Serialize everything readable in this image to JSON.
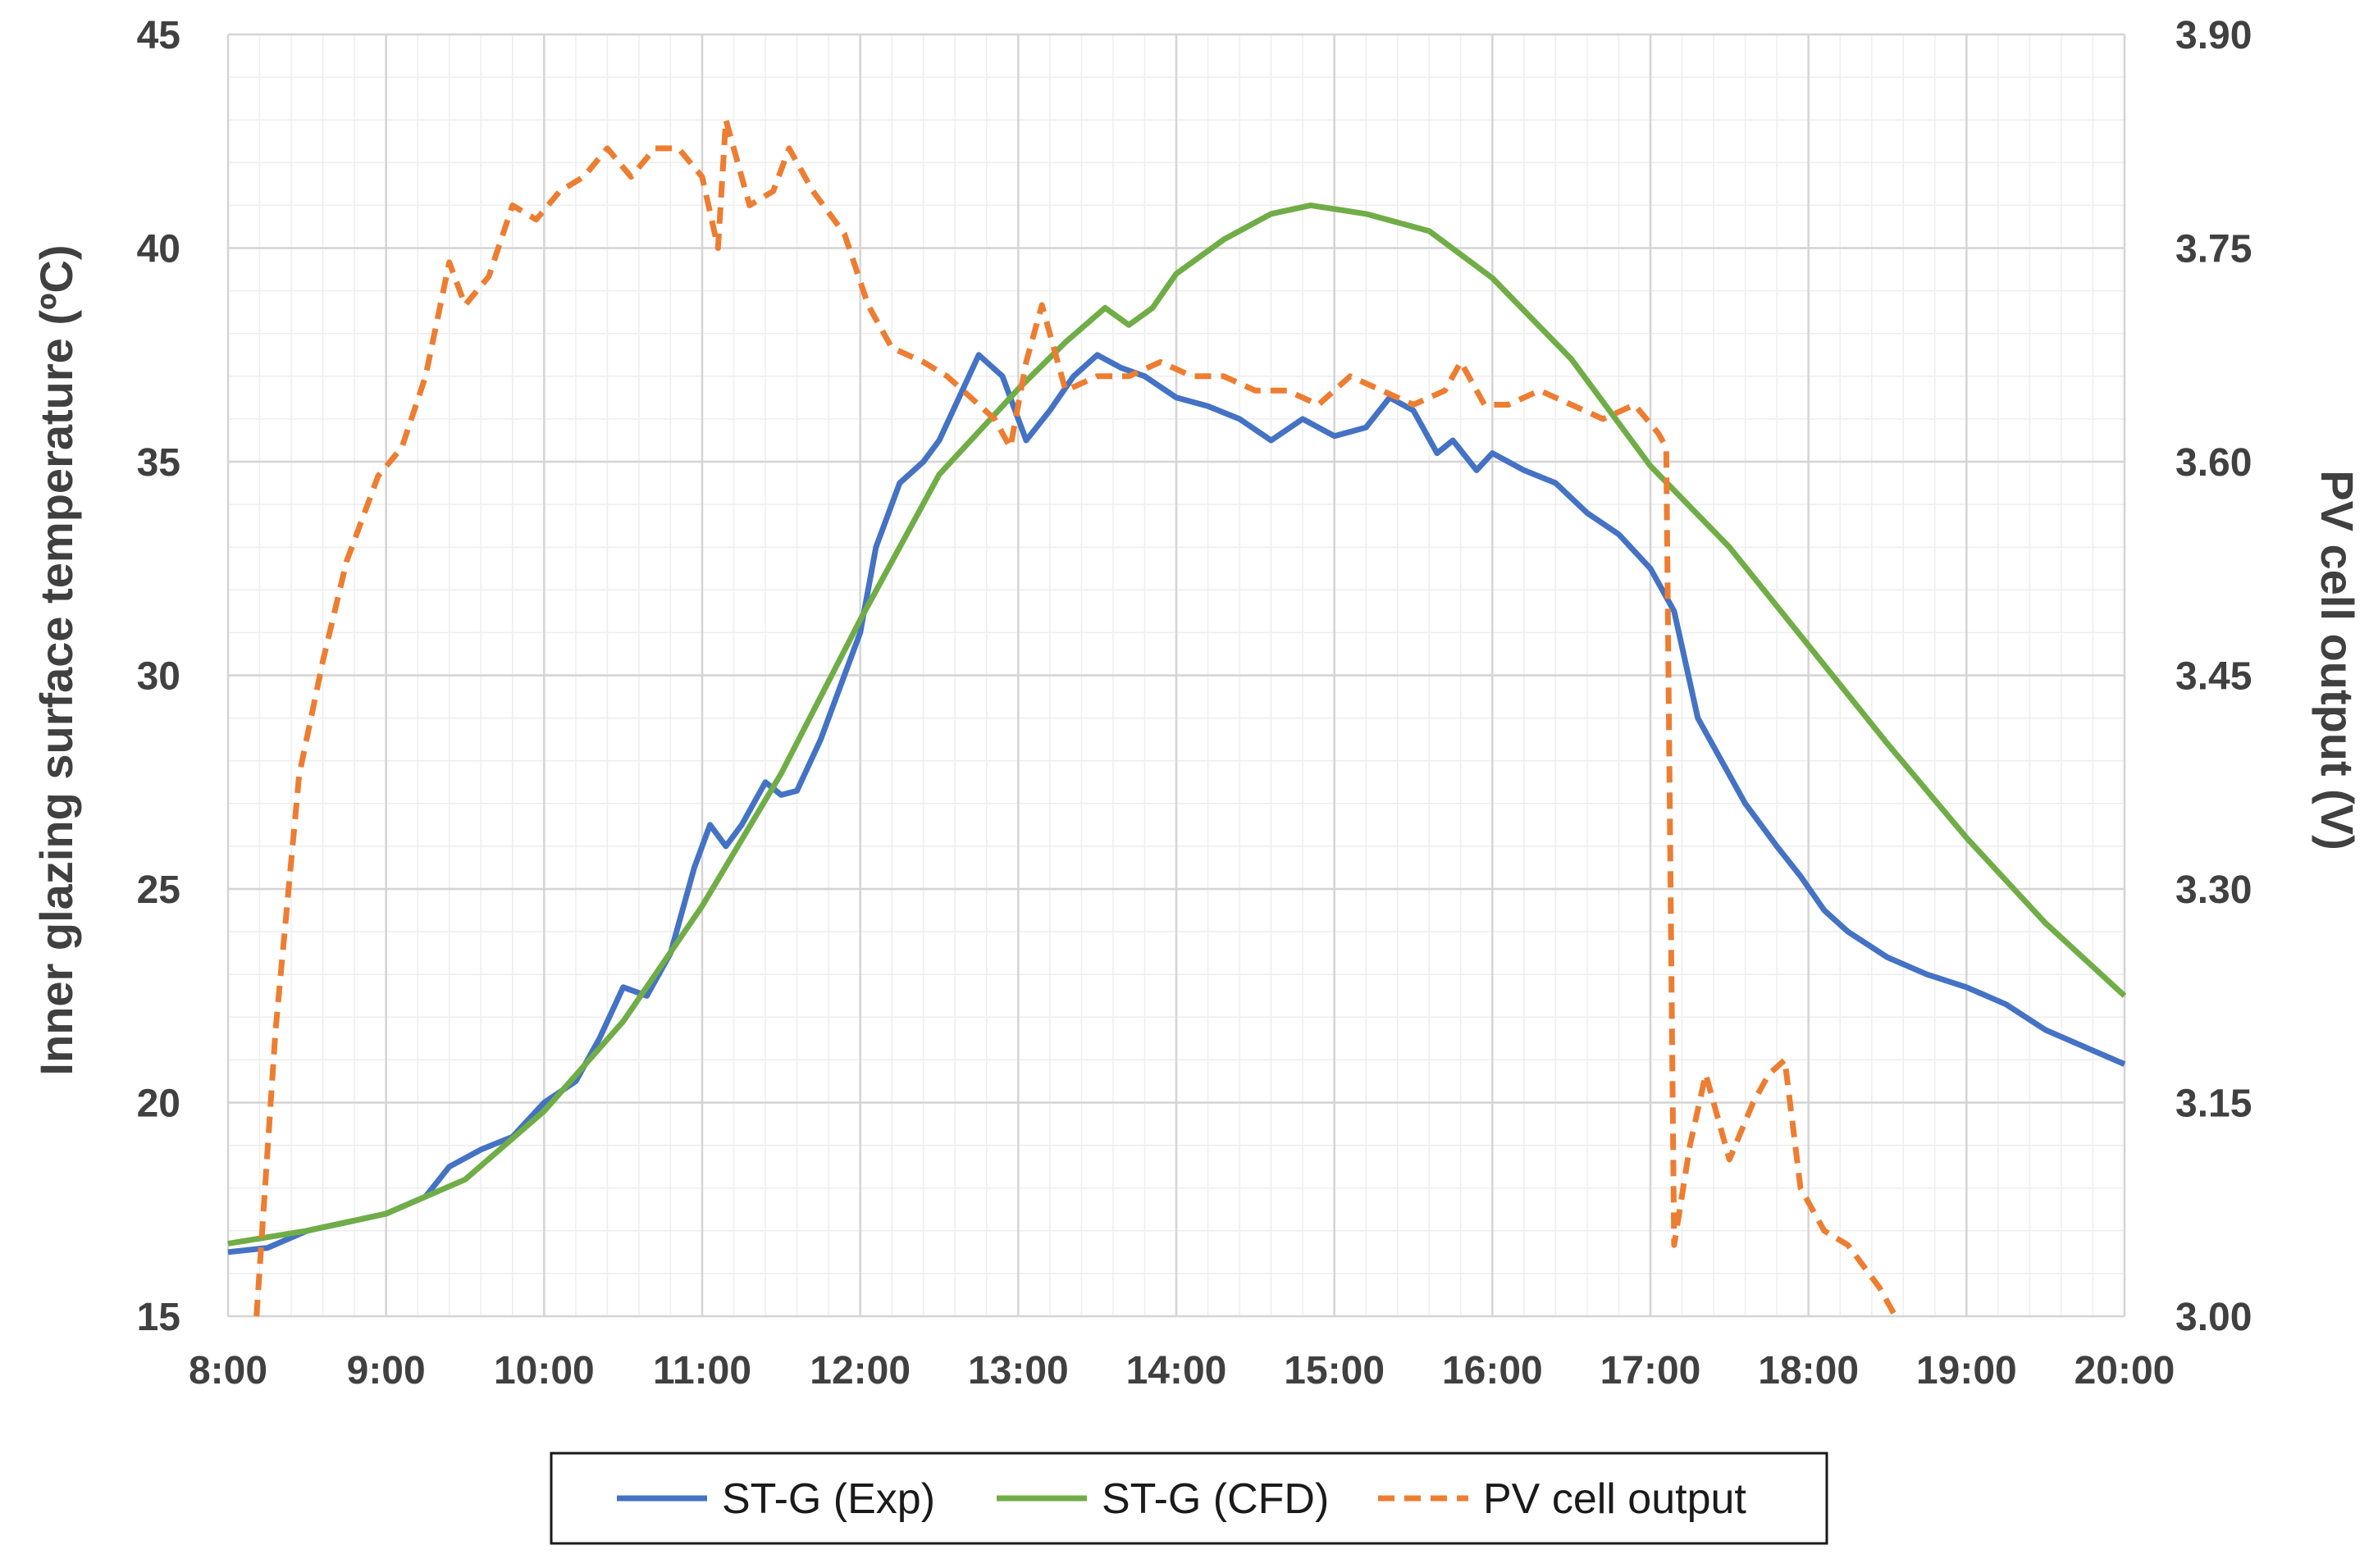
{
  "chart_data": {
    "type": "line",
    "title": "",
    "xlabel": "",
    "ylabel": "Inner glazing surface temperature (ºC)",
    "y2label": "PV cell output (V)",
    "x_ticks": [
      "8:00",
      "9:00",
      "10:00",
      "11:00",
      "12:00",
      "13:00",
      "14:00",
      "15:00",
      "16:00",
      "17:00",
      "18:00",
      "19:00",
      "20:00"
    ],
    "y_ticks": [
      "15",
      "20",
      "25",
      "30",
      "35",
      "40",
      "45"
    ],
    "y2_ticks": [
      "3.00",
      "3.15",
      "3.30",
      "3.45",
      "3.60",
      "3.75",
      "3.90"
    ],
    "xlim": [
      8,
      20
    ],
    "ylim": [
      15,
      45
    ],
    "y2lim": [
      3.0,
      3.9
    ],
    "grid": true,
    "legend_position": "bottom",
    "series": [
      {
        "name": "ST-G (Exp)",
        "axis": "left",
        "color": "#4472C4",
        "style": "solid",
        "x": [
          8.0,
          8.25,
          8.5,
          8.75,
          9.0,
          9.25,
          9.4,
          9.6,
          9.8,
          10.0,
          10.2,
          10.35,
          10.5,
          10.65,
          10.8,
          10.95,
          11.05,
          11.15,
          11.25,
          11.4,
          11.5,
          11.6,
          11.75,
          11.9,
          12.0,
          12.1,
          12.25,
          12.4,
          12.5,
          12.6,
          12.75,
          12.9,
          13.05,
          13.2,
          13.35,
          13.5,
          13.65,
          13.8,
          14.0,
          14.2,
          14.4,
          14.6,
          14.8,
          15.0,
          15.2,
          15.35,
          15.5,
          15.65,
          15.75,
          15.9,
          16.0,
          16.2,
          16.4,
          16.6,
          16.8,
          17.0,
          17.15,
          17.3,
          17.45,
          17.6,
          17.8,
          17.95,
          18.1,
          18.25,
          18.5,
          18.75,
          19.0,
          19.25,
          19.5,
          19.75,
          20.0
        ],
        "values": [
          16.5,
          16.6,
          17.0,
          17.2,
          17.4,
          17.8,
          18.5,
          18.9,
          19.2,
          20.0,
          20.5,
          21.5,
          22.7,
          22.5,
          23.5,
          25.5,
          26.5,
          26.0,
          26.5,
          27.5,
          27.2,
          27.3,
          28.5,
          30.0,
          31.0,
          33.0,
          34.5,
          35.0,
          35.5,
          36.3,
          37.5,
          37.0,
          35.5,
          36.2,
          37.0,
          37.5,
          37.2,
          37.0,
          36.5,
          36.3,
          36.0,
          35.5,
          36.0,
          35.6,
          35.8,
          36.5,
          36.2,
          35.2,
          35.5,
          34.8,
          35.2,
          34.8,
          34.5,
          33.8,
          33.3,
          32.5,
          31.5,
          29.0,
          28.0,
          27.0,
          26.0,
          25.3,
          24.5,
          24.0,
          23.4,
          23.0,
          22.7,
          22.3,
          21.7,
          21.3,
          20.9
        ]
      },
      {
        "name": "ST-G (CFD)",
        "axis": "left",
        "color": "#70AD47",
        "style": "solid",
        "x": [
          8.0,
          8.5,
          9.0,
          9.5,
          10.0,
          10.5,
          11.0,
          11.5,
          12.0,
          12.5,
          13.0,
          13.3,
          13.55,
          13.7,
          13.85,
          14.0,
          14.3,
          14.6,
          14.85,
          15.2,
          15.6,
          16.0,
          16.5,
          17.0,
          17.5,
          18.0,
          18.5,
          19.0,
          19.5,
          20.0
        ],
        "values": [
          16.7,
          17.0,
          17.4,
          18.2,
          19.8,
          21.9,
          24.6,
          27.7,
          31.3,
          34.7,
          36.7,
          37.8,
          38.6,
          38.2,
          38.6,
          39.4,
          40.2,
          40.8,
          41.0,
          40.8,
          40.4,
          39.3,
          37.4,
          34.9,
          33.0,
          30.7,
          28.4,
          26.2,
          24.2,
          22.5
        ]
      },
      {
        "name": "PV cell output",
        "axis": "right",
        "color": "#ED7D31",
        "style": "dashed",
        "x": [
          8.18,
          8.3,
          8.45,
          8.6,
          8.75,
          8.95,
          9.1,
          9.25,
          9.4,
          9.5,
          9.65,
          9.8,
          9.95,
          10.1,
          10.25,
          10.4,
          10.55,
          10.7,
          10.85,
          11.0,
          11.1,
          11.15,
          11.3,
          11.45,
          11.55,
          11.7,
          11.9,
          12.05,
          12.2,
          12.4,
          12.55,
          12.75,
          12.85,
          12.95,
          13.05,
          13.15,
          13.3,
          13.5,
          13.7,
          13.9,
          14.1,
          14.3,
          14.5,
          14.7,
          14.9,
          15.1,
          15.3,
          15.5,
          15.7,
          15.8,
          15.95,
          16.1,
          16.3,
          16.5,
          16.7,
          16.9,
          17.05,
          17.1,
          17.15,
          17.25,
          17.35,
          17.5,
          17.65,
          17.75,
          17.85,
          17.95,
          18.1,
          18.25,
          18.45,
          18.55
        ],
        "values": [
          3.0,
          3.2,
          3.38,
          3.46,
          3.53,
          3.59,
          3.61,
          3.66,
          3.74,
          3.71,
          3.73,
          3.78,
          3.77,
          3.79,
          3.8,
          3.82,
          3.8,
          3.82,
          3.82,
          3.8,
          3.75,
          3.84,
          3.78,
          3.79,
          3.82,
          3.79,
          3.76,
          3.71,
          3.68,
          3.67,
          3.66,
          3.64,
          3.63,
          3.61,
          3.67,
          3.71,
          3.65,
          3.66,
          3.66,
          3.67,
          3.66,
          3.66,
          3.65,
          3.65,
          3.64,
          3.66,
          3.65,
          3.64,
          3.65,
          3.67,
          3.64,
          3.64,
          3.65,
          3.64,
          3.63,
          3.64,
          3.62,
          3.61,
          3.05,
          3.12,
          3.17,
          3.11,
          3.15,
          3.17,
          3.18,
          3.09,
          3.06,
          3.05,
          3.02,
          3.0
        ]
      }
    ]
  }
}
